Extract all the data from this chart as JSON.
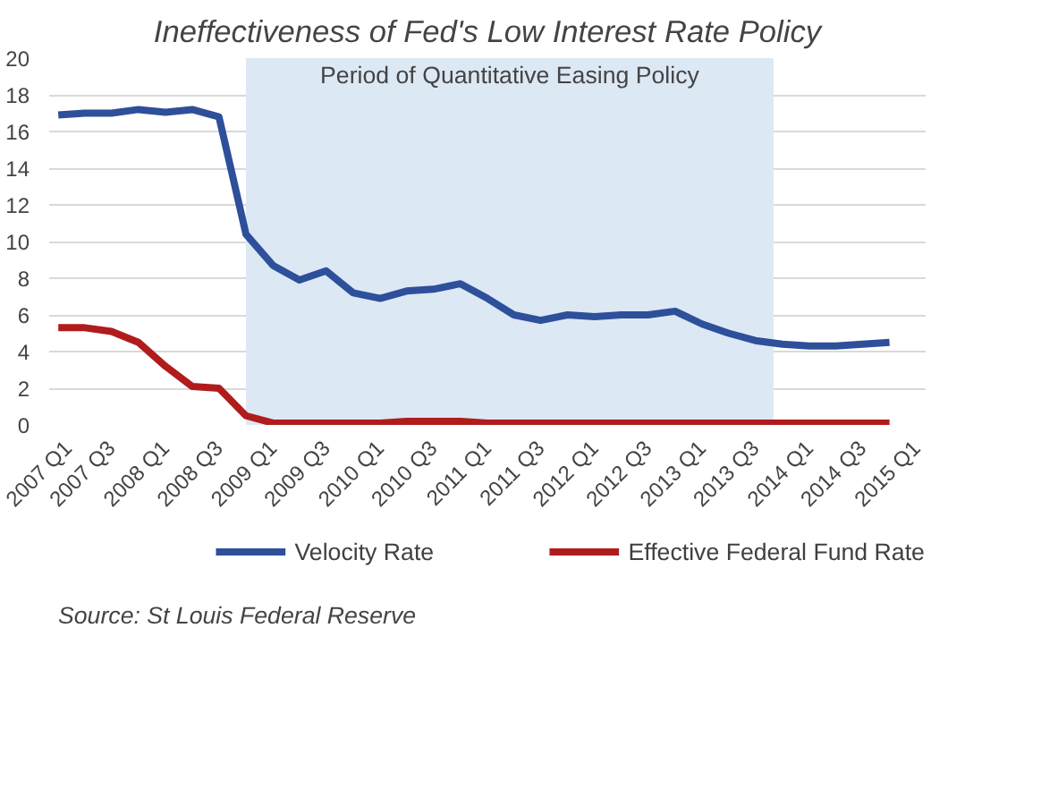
{
  "chart_data": {
    "type": "line",
    "title": "Ineffectiveness of Fed's Low Interest Rate Policy",
    "x": [
      "2007-01",
      "2007-04",
      "2007-07",
      "2007-10",
      "2008-01",
      "2008-04",
      "2008-07",
      "2008-10",
      "2009-01",
      "2009-04",
      "2009-07",
      "2009-10",
      "2010-01",
      "2010-04",
      "2010-07",
      "2010-10",
      "2011-01",
      "2011-04",
      "2011-07",
      "2011-10",
      "2012-01",
      "2012-04",
      "2012-07",
      "2012-10",
      "2013-01",
      "2013-04",
      "2013-07",
      "2013-10",
      "2014-01",
      "2014-04",
      "2014-07",
      "2014-10"
    ],
    "series": [
      {
        "name": "Velocity Rate",
        "color": "#2e4f9a",
        "values": [
          16.9,
          17.0,
          17.0,
          17.2,
          17.05,
          17.2,
          16.8,
          10.4,
          8.7,
          7.9,
          8.4,
          7.2,
          6.9,
          7.3,
          7.4,
          7.7,
          6.9,
          6.0,
          5.7,
          6.0,
          5.9,
          6.0,
          6.0,
          6.2,
          5.5,
          5.0,
          4.6,
          4.4,
          4.3,
          4.3,
          4.4,
          4.5
        ]
      },
      {
        "name": "Effective Federal Fund Rate",
        "color": "#b01c1c",
        "values": [
          5.3,
          5.3,
          5.1,
          4.5,
          3.2,
          2.1,
          2.0,
          0.5,
          0.1,
          0.1,
          0.1,
          0.1,
          0.1,
          0.2,
          0.2,
          0.2,
          0.1,
          0.1,
          0.1,
          0.1,
          0.1,
          0.1,
          0.1,
          0.1,
          0.1,
          0.1,
          0.1,
          0.1,
          0.1,
          0.1,
          0.1,
          0.1
        ]
      }
    ],
    "xlim": [
      "2006-12-01",
      "2015-02-01"
    ],
    "xticks": [
      {
        "value": "2007-01",
        "label": "2007 Q1"
      },
      {
        "value": "2007-07",
        "label": "2007 Q3"
      },
      {
        "value": "2008-01",
        "label": "2008 Q1"
      },
      {
        "value": "2008-07",
        "label": "2008 Q3"
      },
      {
        "value": "2009-01",
        "label": "2009 Q1"
      },
      {
        "value": "2009-07",
        "label": "2009 Q3"
      },
      {
        "value": "2010-01",
        "label": "2010 Q1"
      },
      {
        "value": "2010-07",
        "label": "2010 Q3"
      },
      {
        "value": "2011-01",
        "label": "2011 Q1"
      },
      {
        "value": "2011-07",
        "label": "2011 Q3"
      },
      {
        "value": "2012-01",
        "label": "2012 Q1"
      },
      {
        "value": "2012-07",
        "label": "2012 Q3"
      },
      {
        "value": "2013-01",
        "label": "2013 Q1"
      },
      {
        "value": "2013-07",
        "label": "2013 Q3"
      },
      {
        "value": "2014-01",
        "label": "2014 Q1"
      },
      {
        "value": "2014-07",
        "label": "2014 Q3"
      },
      {
        "value": "2015-01",
        "label": "2015 Q1"
      }
    ],
    "ylim": [
      0,
      20
    ],
    "yticks": [
      0,
      2,
      4,
      6,
      8,
      10,
      12,
      14,
      16,
      18,
      20
    ],
    "bands": [
      {
        "axis": "x",
        "from": "2008-10",
        "to": "2013-09",
        "label": "Period of Quantitative Easing Policy",
        "color": "#dce8f4"
      }
    ],
    "grid": "y",
    "legend": "bottom",
    "marker": "none",
    "line_style": "solid",
    "annotations": [
      "Source: St Louis Federal Reserve"
    ]
  }
}
